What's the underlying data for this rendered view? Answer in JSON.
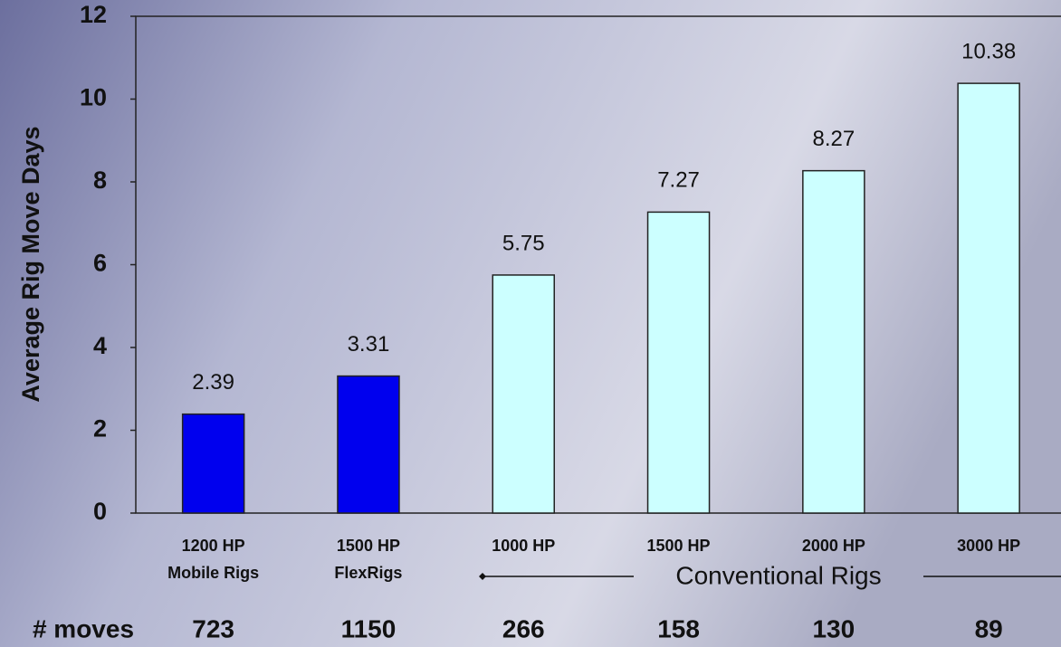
{
  "chart_data": {
    "type": "bar",
    "y_label": "Average Rig Move Days",
    "categories": [
      "1200 HP",
      "1500 HP",
      "1000 HP",
      "1500 HP",
      "2000 HP",
      "3000 HP"
    ],
    "sublabels": [
      "Mobile Rigs",
      "FlexRigs",
      null,
      null,
      null,
      null
    ],
    "values": [
      2.39,
      3.31,
      5.75,
      7.27,
      8.27,
      10.38
    ],
    "colors": [
      "#0000ee",
      "#0000ee",
      "#ccffff",
      "#ccffff",
      "#ccffff",
      "#ccffff"
    ],
    "group_label": "Conventional Rigs",
    "moves_label": "# moves",
    "moves": [
      723,
      1150,
      266,
      158,
      130,
      89
    ],
    "ylim": [
      0,
      12
    ],
    "yticks": [
      0,
      2,
      4,
      6,
      8,
      10,
      12
    ]
  }
}
